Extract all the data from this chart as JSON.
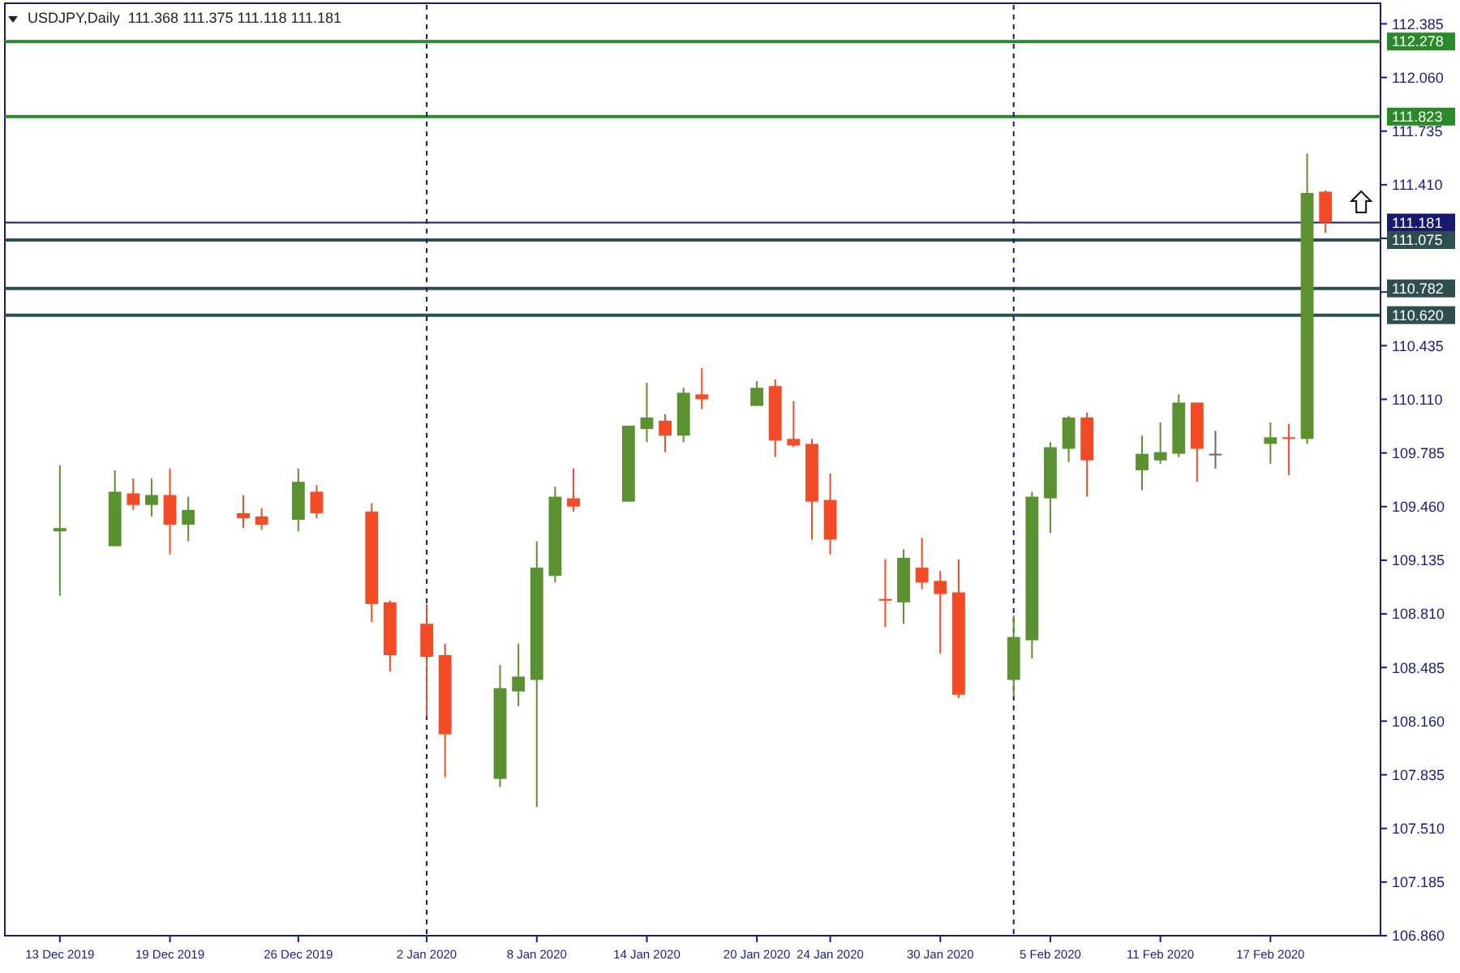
{
  "chart_data": {
    "type": "candlestick",
    "title": "USDJPY,Daily  111.368 111.375 111.118 111.181",
    "x": [
      "2019-12-13",
      "2019-12-16",
      "2019-12-17",
      "2019-12-18",
      "2019-12-19",
      "2019-12-20",
      "2019-12-23",
      "2019-12-24",
      "2019-12-26",
      "2019-12-27",
      "2019-12-30",
      "2019-12-31",
      "2020-01-02",
      "2020-01-03",
      "2020-01-06",
      "2020-01-07",
      "2020-01-08",
      "2020-01-09",
      "2020-01-10",
      "2020-01-13",
      "2020-01-14",
      "2020-01-15",
      "2020-01-16",
      "2020-01-17",
      "2020-01-20",
      "2020-01-21",
      "2020-01-22",
      "2020-01-23",
      "2020-01-24",
      "2020-01-27",
      "2020-01-28",
      "2020-01-29",
      "2020-01-30",
      "2020-01-31",
      "2020-02-03",
      "2020-02-04",
      "2020-02-05",
      "2020-02-06",
      "2020-02-07",
      "2020-02-10",
      "2020-02-11",
      "2020-02-12",
      "2020-02-13",
      "2020-02-14",
      "2020-02-17",
      "2020-02-18",
      "2020-02-19",
      "2020-02-20"
    ],
    "ohlc": [
      [
        109.31,
        109.71,
        108.92,
        109.33
      ],
      [
        109.22,
        109.68,
        109.22,
        109.55
      ],
      [
        109.54,
        109.63,
        109.44,
        109.47
      ],
      [
        109.47,
        109.63,
        109.4,
        109.53
      ],
      [
        109.53,
        109.69,
        109.17,
        109.35
      ],
      [
        109.35,
        109.52,
        109.25,
        109.44
      ],
      [
        109.42,
        109.53,
        109.33,
        109.39
      ],
      [
        109.4,
        109.45,
        109.32,
        109.35
      ],
      [
        109.38,
        109.69,
        109.31,
        109.61
      ],
      [
        109.55,
        109.59,
        109.39,
        109.42
      ],
      [
        109.43,
        109.48,
        108.76,
        108.87
      ],
      [
        108.88,
        108.89,
        108.46,
        108.56
      ],
      [
        108.75,
        108.87,
        108.19,
        108.55
      ],
      [
        108.56,
        108.63,
        107.82,
        108.08
      ],
      [
        107.81,
        108.5,
        107.76,
        108.36
      ],
      [
        108.34,
        108.63,
        108.25,
        108.43
      ],
      [
        108.41,
        109.25,
        107.64,
        109.09
      ],
      [
        109.04,
        109.58,
        109.0,
        109.52
      ],
      [
        109.51,
        109.69,
        109.43,
        109.46
      ],
      [
        109.49,
        109.95,
        109.49,
        109.95
      ],
      [
        109.93,
        110.21,
        109.85,
        110.0
      ],
      [
        109.98,
        110.02,
        109.79,
        109.89
      ],
      [
        109.89,
        110.18,
        109.85,
        110.15
      ],
      [
        110.14,
        110.3,
        110.05,
        110.11
      ],
      [
        110.07,
        110.22,
        110.07,
        110.18
      ],
      [
        110.19,
        110.23,
        109.76,
        109.86
      ],
      [
        109.87,
        110.1,
        109.82,
        109.83
      ],
      [
        109.84,
        109.87,
        109.26,
        109.49
      ],
      [
        109.5,
        109.66,
        109.17,
        109.26
      ],
      [
        108.9,
        109.14,
        108.73,
        108.89
      ],
      [
        108.88,
        109.2,
        108.75,
        109.15
      ],
      [
        109.09,
        109.27,
        108.96,
        109.0
      ],
      [
        109.01,
        109.07,
        108.57,
        108.93
      ],
      [
        108.94,
        109.14,
        108.3,
        108.32
      ],
      [
        108.41,
        108.8,
        108.31,
        108.67
      ],
      [
        108.65,
        109.55,
        108.54,
        109.52
      ],
      [
        109.51,
        109.85,
        109.3,
        109.82
      ],
      [
        109.81,
        110.01,
        109.73,
        110.0
      ],
      [
        110.0,
        110.03,
        109.52,
        109.74
      ],
      [
        109.68,
        109.89,
        109.56,
        109.78
      ],
      [
        109.74,
        109.97,
        109.72,
        109.79
      ],
      [
        109.78,
        110.14,
        109.76,
        110.09
      ],
      [
        110.09,
        110.09,
        109.61,
        109.81
      ],
      [
        109.78,
        109.92,
        109.69,
        109.78
      ],
      [
        109.84,
        109.97,
        109.72,
        109.88
      ],
      [
        109.88,
        109.96,
        109.65,
        109.87
      ],
      [
        109.87,
        111.6,
        109.84,
        111.36
      ],
      [
        111.368,
        111.375,
        111.118,
        111.181
      ]
    ],
    "colors": [
      "#5b9130",
      "#5b9130",
      "#f24b25",
      "#5b9130",
      "#f24b25",
      "#5b9130",
      "#f24b25",
      "#f24b25",
      "#5b9130",
      "#f24b25",
      "#f24b25",
      "#f24b25",
      "#f24b25",
      "#f24b25",
      "#5b9130",
      "#5b9130",
      "#5b9130",
      "#5b9130",
      "#f24b25",
      "#5b9130",
      "#5b9130",
      "#f24b25",
      "#5b9130",
      "#f24b25",
      "#5b9130",
      "#f24b25",
      "#f24b25",
      "#f24b25",
      "#f24b25",
      "#f24b25",
      "#5b9130",
      "#f24b25",
      "#f24b25",
      "#f24b25",
      "#5b9130",
      "#5b9130",
      "#5b9130",
      "#5b9130",
      "#f24b25",
      "#5b9130",
      "#5b9130",
      "#5b9130",
      "#f24b25",
      "#6a6a6a",
      "#5b9130",
      "#f24b25",
      "#5b9130",
      "#f24b25"
    ],
    "ylim": [
      106.86,
      112.5
    ],
    "yticks": [
      {
        "value": 112.385,
        "label": "112.385"
      },
      {
        "value": 112.06,
        "label": "112.060"
      },
      {
        "value": 111.735,
        "label": "111.735"
      },
      {
        "value": 111.41,
        "label": "111.410"
      },
      {
        "value": 111.085,
        "label": null
      },
      {
        "value": 110.76,
        "label": null
      },
      {
        "value": 110.435,
        "label": "110.435"
      },
      {
        "value": 110.11,
        "label": "110.110"
      },
      {
        "value": 109.785,
        "label": "109.785"
      },
      {
        "value": 109.46,
        "label": "109.460"
      },
      {
        "value": 109.135,
        "label": "109.135"
      },
      {
        "value": 108.81,
        "label": "108.810"
      },
      {
        "value": 108.485,
        "label": "108.485"
      },
      {
        "value": 108.16,
        "label": "108.160"
      },
      {
        "value": 107.835,
        "label": "107.835"
      },
      {
        "value": 107.51,
        "label": "107.510"
      },
      {
        "value": 107.185,
        "label": "107.185"
      },
      {
        "value": 106.86,
        "label": "106.860"
      }
    ],
    "xticks": [
      {
        "value": "2019-12-13",
        "label": "13 Dec 2019"
      },
      {
        "value": "2019-12-19",
        "label": "19 Dec 2019"
      },
      {
        "value": "2019-12-26",
        "label": "26 Dec 2019"
      },
      {
        "value": "2020-01-02",
        "label": "2 Jan 2020"
      },
      {
        "value": "2020-01-08",
        "label": "8 Jan 2020"
      },
      {
        "value": "2020-01-14",
        "label": "14 Jan 2020"
      },
      {
        "value": "2020-01-20",
        "label": "20 Jan 2020"
      },
      {
        "value": "2020-01-24",
        "label": "24 Jan 2020"
      },
      {
        "value": "2020-01-30",
        "label": "30 Jan 2020"
      },
      {
        "value": "2020-02-05",
        "label": "5 Feb 2020"
      },
      {
        "value": "2020-02-11",
        "label": "11 Feb 2020"
      },
      {
        "value": "2020-02-17",
        "label": "17 Feb 2020"
      }
    ],
    "ref_lines": [
      {
        "axis": "y",
        "value": 112.278,
        "label": "112.278",
        "color": "#2a8a2a",
        "line_style": "solid"
      },
      {
        "axis": "y",
        "value": 111.823,
        "label": "111.823",
        "color": "#2a8a2a",
        "line_style": "solid"
      },
      {
        "axis": "y",
        "value": 111.181,
        "label": "111.181",
        "color": "#191970",
        "line_style": "solid"
      },
      {
        "axis": "y",
        "value": 111.075,
        "label": "111.075",
        "color": "#2f4f4f",
        "line_style": "solid"
      },
      {
        "axis": "y",
        "value": 110.782,
        "label": "110.782",
        "color": "#2f4f4f",
        "line_style": "solid"
      },
      {
        "axis": "y",
        "value": 110.62,
        "label": "110.620",
        "color": "#2f4f4f",
        "line_style": "solid"
      },
      {
        "axis": "x",
        "value": "2020-01-02",
        "color": "#1a1a5a",
        "line_style": "dashed"
      },
      {
        "axis": "x",
        "value": "2020-02-03",
        "color": "#1a1a5a",
        "line_style": "dashed"
      }
    ],
    "xlim": [
      "2019-12-10",
      "2020-02-23"
    ],
    "grid": false
  }
}
